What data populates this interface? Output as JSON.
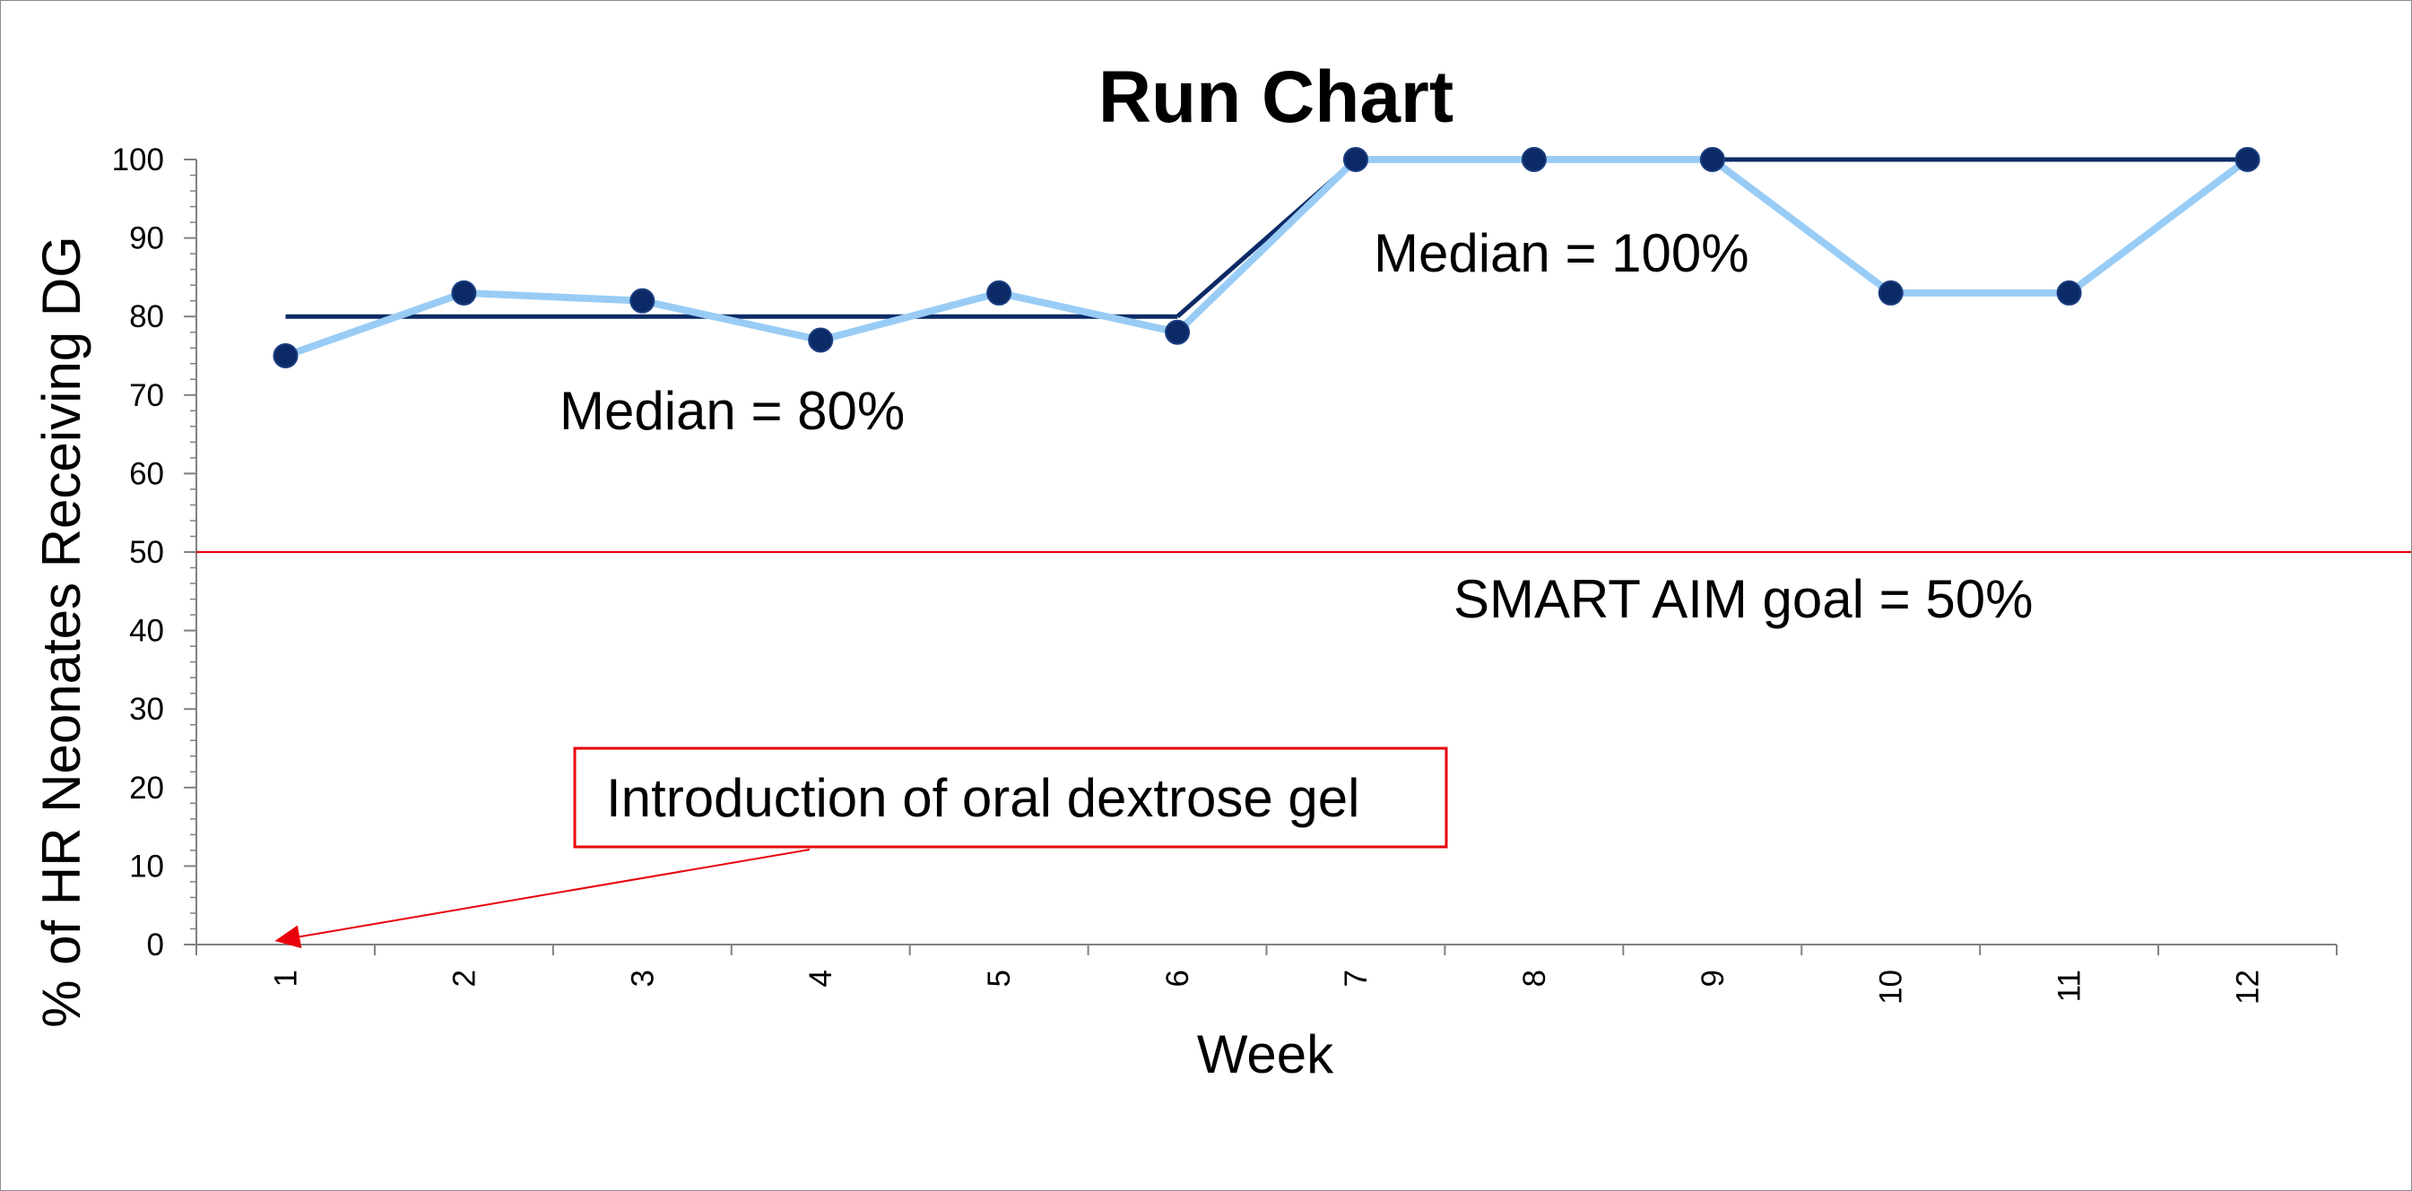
{
  "chart_data": {
    "type": "line",
    "title": "Run Chart",
    "xlabel": "Week",
    "ylabel": "% of HR Neonates Receiving DG",
    "categories": [
      "1",
      "2",
      "3",
      "4",
      "5",
      "6",
      "7",
      "8",
      "9",
      "10",
      "11",
      "12"
    ],
    "series": [
      {
        "values": [
          75,
          83,
          82,
          77,
          83,
          78,
          100,
          100,
          100,
          83,
          83,
          100
        ],
        "color": "#99ccf5",
        "markers": true,
        "marker_color": "#0b2a66"
      }
    ],
    "median_lines": [
      {
        "label": "Median = 80%",
        "value": 80,
        "from_week": 1,
        "to_week": 6,
        "color": "#0b2a66"
      },
      {
        "label": "Median = 100%",
        "value": 100,
        "from_week": 7,
        "to_week": 12,
        "color": "#0b2a66"
      }
    ],
    "median_shift_segment": {
      "from": [
        6,
        80
      ],
      "to": [
        7,
        100
      ]
    },
    "goal_line": {
      "label": "SMART AIM goal = 50%",
      "value": 50,
      "color": "#e8000b"
    },
    "annotation": {
      "text": "Introduction of oral dextrose gel",
      "points_to": [
        1,
        0
      ],
      "color": "#e8000b"
    },
    "ylim": [
      0,
      100
    ],
    "yticks": [
      0,
      10,
      20,
      30,
      40,
      50,
      60,
      70,
      80,
      90,
      100
    ],
    "grid": false,
    "legend": "none"
  }
}
